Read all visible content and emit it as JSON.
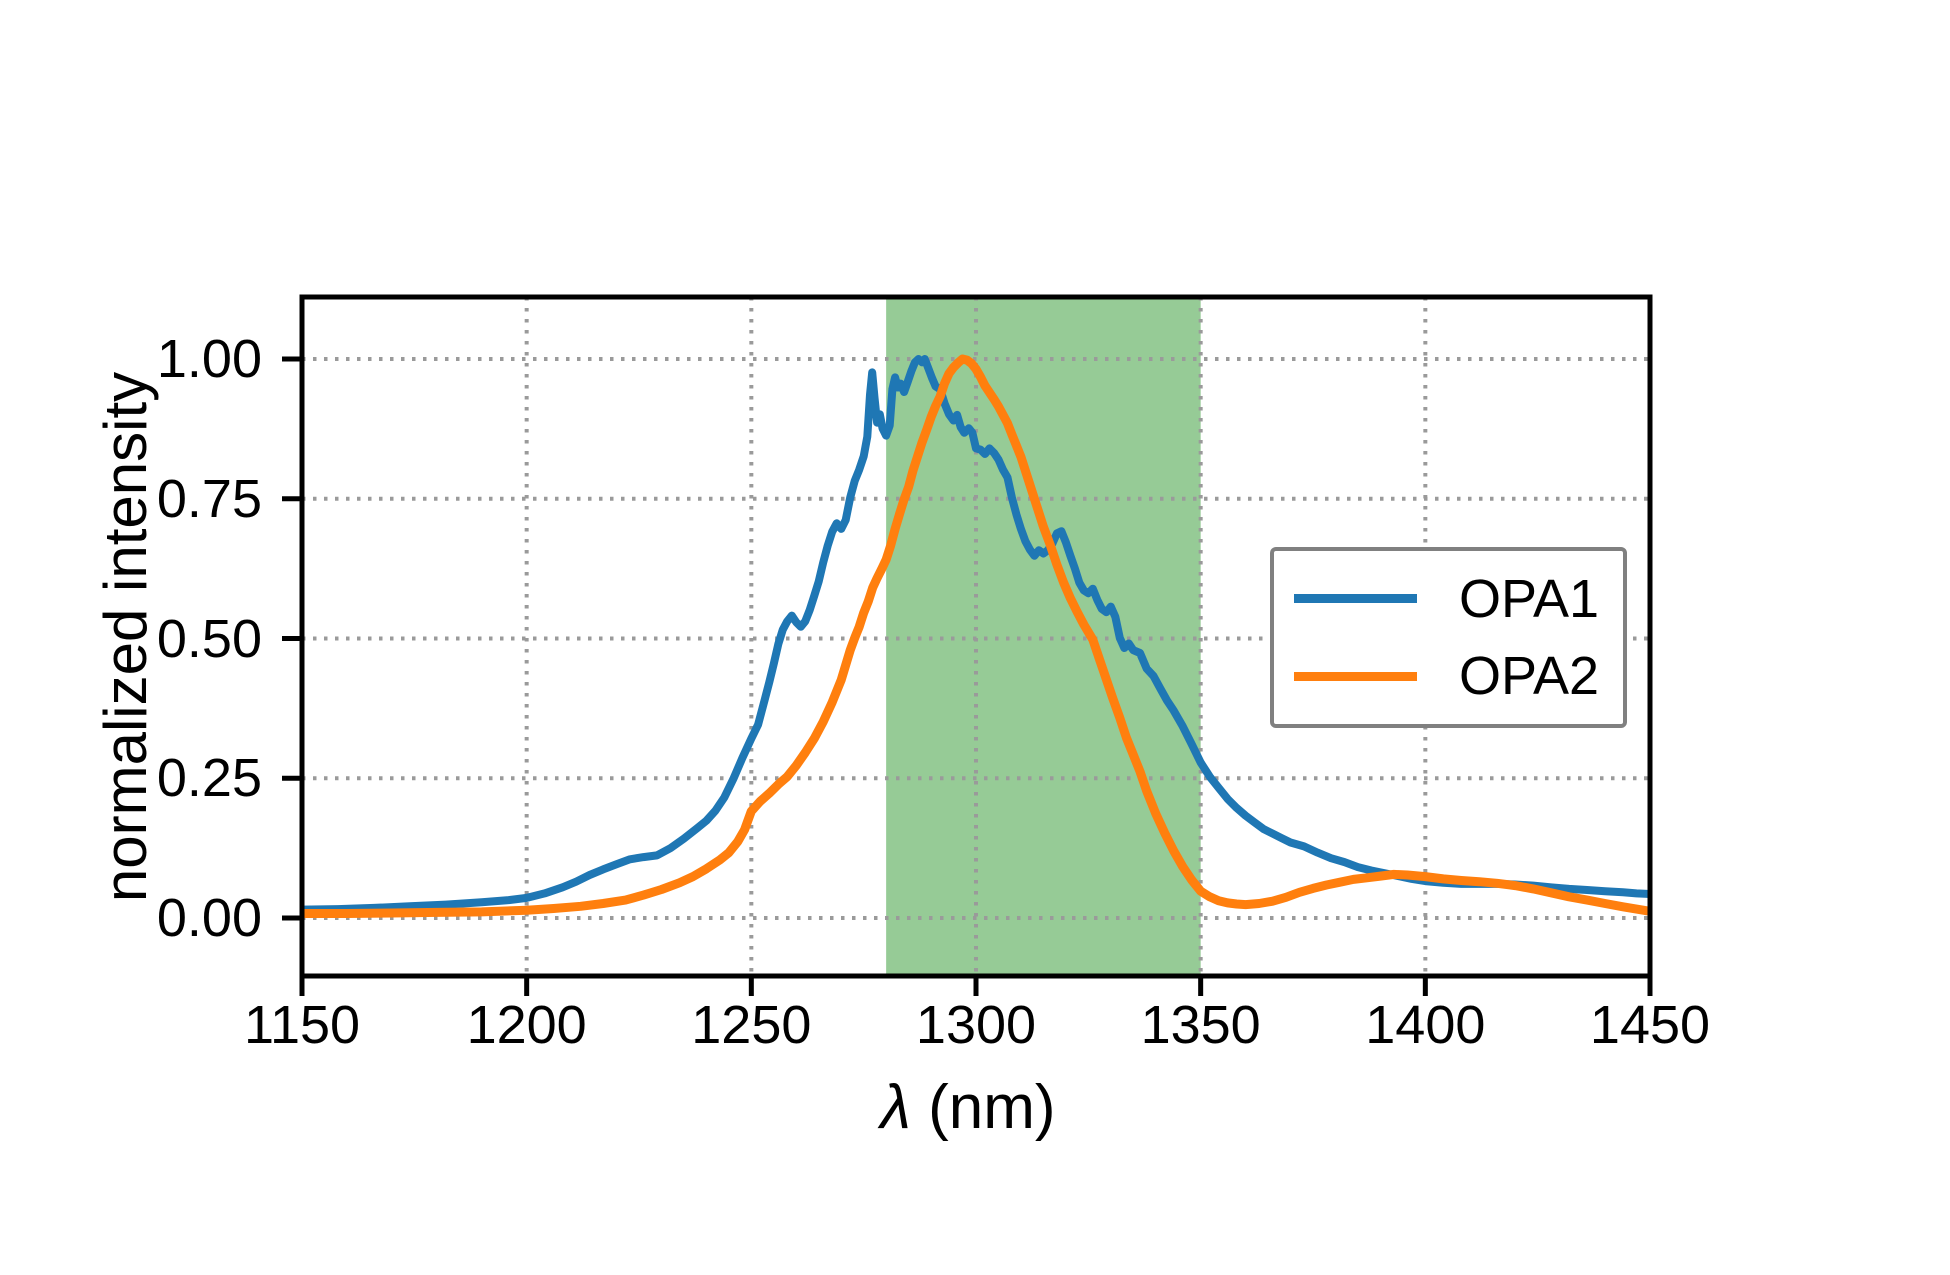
{
  "chart_data": {
    "type": "line",
    "title": "",
    "xlabel": "λ (nm)",
    "xlabel_lambda": "λ",
    "xlabel_units": " (nm)",
    "ylabel": "normalized intensity",
    "xlim": [
      1150,
      1450
    ],
    "ylim": [
      -0.1,
      1.11
    ],
    "xticks": [
      "1150",
      "1200",
      "1250",
      "1300",
      "1350",
      "1400",
      "1450"
    ],
    "xtick_values": [
      1150,
      1200,
      1250,
      1300,
      1350,
      1400,
      1450
    ],
    "yticks": [
      "0.00",
      "0.25",
      "0.50",
      "0.75",
      "1.00"
    ],
    "ytick_values": [
      0,
      0.25,
      0.5,
      0.75,
      1.0
    ],
    "grid": {
      "visible": true,
      "style": "dotted",
      "color": "#9a9a9a"
    },
    "shaded_region": {
      "x0": 1280,
      "x1": 1350,
      "color": "#96cb96"
    },
    "legend": {
      "position": "center right",
      "border_color": "#808080",
      "entries": [
        "OPA1",
        "OPA2"
      ]
    },
    "series": [
      {
        "name": "OPA1",
        "color": "#1f77b4",
        "points": [
          [
            1150,
            0.015
          ],
          [
            1158,
            0.016
          ],
          [
            1166,
            0.018
          ],
          [
            1174,
            0.021
          ],
          [
            1182,
            0.024
          ],
          [
            1190,
            0.028
          ],
          [
            1196,
            0.032
          ],
          [
            1200,
            0.036
          ],
          [
            1204,
            0.044
          ],
          [
            1208,
            0.055
          ],
          [
            1211,
            0.065
          ],
          [
            1214,
            0.077
          ],
          [
            1217,
            0.087
          ],
          [
            1220,
            0.096
          ],
          [
            1223,
            0.105
          ],
          [
            1226,
            0.109
          ],
          [
            1229,
            0.112
          ],
          [
            1232,
            0.125
          ],
          [
            1235,
            0.142
          ],
          [
            1238,
            0.161
          ],
          [
            1240,
            0.174
          ],
          [
            1242,
            0.192
          ],
          [
            1244,
            0.216
          ],
          [
            1246,
            0.249
          ],
          [
            1248,
            0.286
          ],
          [
            1250,
            0.321
          ],
          [
            1251.5,
            0.346
          ],
          [
            1253,
            0.391
          ],
          [
            1254,
            0.422
          ],
          [
            1255,
            0.455
          ],
          [
            1256,
            0.49
          ],
          [
            1257,
            0.516
          ],
          [
            1258,
            0.531
          ],
          [
            1259,
            0.541
          ],
          [
            1260,
            0.529
          ],
          [
            1261,
            0.521
          ],
          [
            1262,
            0.531
          ],
          [
            1263,
            0.551
          ],
          [
            1264,
            0.576
          ],
          [
            1265,
            0.602
          ],
          [
            1266,
            0.636
          ],
          [
            1267,
            0.666
          ],
          [
            1268,
            0.691
          ],
          [
            1269,
            0.706
          ],
          [
            1270,
            0.696
          ],
          [
            1271,
            0.712
          ],
          [
            1272,
            0.752
          ],
          [
            1273,
            0.782
          ],
          [
            1274,
            0.802
          ],
          [
            1275,
            0.826
          ],
          [
            1275.8,
            0.861
          ],
          [
            1276.4,
            0.936
          ],
          [
            1276.9,
            0.976
          ],
          [
            1277.4,
            0.931
          ],
          [
            1278,
            0.886
          ],
          [
            1278.6,
            0.901
          ],
          [
            1279.2,
            0.876
          ],
          [
            1280,
            0.863
          ],
          [
            1280.8,
            0.881
          ],
          [
            1281.4,
            0.946
          ],
          [
            1282,
            0.967
          ],
          [
            1282.6,
            0.949
          ],
          [
            1283.2,
            0.956
          ],
          [
            1284,
            0.941
          ],
          [
            1284.8,
            0.959
          ],
          [
            1285.6,
            0.978
          ],
          [
            1286.4,
            0.994
          ],
          [
            1287.2,
            1.0
          ],
          [
            1288,
            0.994
          ],
          [
            1288.6,
            1.0
          ],
          [
            1289.4,
            0.983
          ],
          [
            1290.2,
            0.966
          ],
          [
            1291,
            0.951
          ],
          [
            1292,
            0.946
          ],
          [
            1293,
            0.921
          ],
          [
            1294,
            0.901
          ],
          [
            1295,
            0.89
          ],
          [
            1295.8,
            0.9
          ],
          [
            1296.6,
            0.878
          ],
          [
            1297.4,
            0.868
          ],
          [
            1298.4,
            0.876
          ],
          [
            1299.2,
            0.868
          ],
          [
            1300,
            0.84
          ],
          [
            1301,
            0.838
          ],
          [
            1302,
            0.83
          ],
          [
            1303,
            0.84
          ],
          [
            1304,
            0.832
          ],
          [
            1305,
            0.82
          ],
          [
            1306,
            0.802
          ],
          [
            1307,
            0.788
          ],
          [
            1308,
            0.752
          ],
          [
            1309,
            0.722
          ],
          [
            1310,
            0.696
          ],
          [
            1311,
            0.674
          ],
          [
            1312,
            0.659
          ],
          [
            1313,
            0.648
          ],
          [
            1314,
            0.658
          ],
          [
            1315,
            0.652
          ],
          [
            1316,
            0.658
          ],
          [
            1317,
            0.67
          ],
          [
            1318,
            0.688
          ],
          [
            1319,
            0.692
          ],
          [
            1320,
            0.672
          ],
          [
            1321,
            0.648
          ],
          [
            1322,
            0.625
          ],
          [
            1323,
            0.6
          ],
          [
            1324,
            0.586
          ],
          [
            1325,
            0.581
          ],
          [
            1326,
            0.589
          ],
          [
            1327,
            0.569
          ],
          [
            1328,
            0.553
          ],
          [
            1329,
            0.547
          ],
          [
            1330,
            0.557
          ],
          [
            1331,
            0.539
          ],
          [
            1332,
            0.501
          ],
          [
            1333,
            0.483
          ],
          [
            1334,
            0.491
          ],
          [
            1335,
            0.479
          ],
          [
            1336.5,
            0.474
          ],
          [
            1338,
            0.446
          ],
          [
            1339.5,
            0.433
          ],
          [
            1341,
            0.411
          ],
          [
            1342.5,
            0.389
          ],
          [
            1344,
            0.371
          ],
          [
            1346,
            0.343
          ],
          [
            1348,
            0.311
          ],
          [
            1350,
            0.278
          ],
          [
            1352,
            0.253
          ],
          [
            1354,
            0.233
          ],
          [
            1356,
            0.213
          ],
          [
            1358,
            0.197
          ],
          [
            1360,
            0.183
          ],
          [
            1362,
            0.171
          ],
          [
            1364,
            0.159
          ],
          [
            1366,
            0.151
          ],
          [
            1368,
            0.143
          ],
          [
            1370,
            0.135
          ],
          [
            1373,
            0.128
          ],
          [
            1376,
            0.117
          ],
          [
            1379,
            0.107
          ],
          [
            1382,
            0.1
          ],
          [
            1385,
            0.091
          ],
          [
            1388,
            0.085
          ],
          [
            1391,
            0.08
          ],
          [
            1394,
            0.075
          ],
          [
            1397,
            0.07
          ],
          [
            1400,
            0.066
          ],
          [
            1404,
            0.063
          ],
          [
            1408,
            0.061
          ],
          [
            1412,
            0.061
          ],
          [
            1416,
            0.061
          ],
          [
            1420,
            0.06
          ],
          [
            1424,
            0.058
          ],
          [
            1428,
            0.055
          ],
          [
            1432,
            0.052
          ],
          [
            1436,
            0.05
          ],
          [
            1440,
            0.048
          ],
          [
            1444,
            0.046
          ],
          [
            1447,
            0.044
          ],
          [
            1450,
            0.043
          ]
        ]
      },
      {
        "name": "OPA2",
        "color": "#ff7f0e",
        "points": [
          [
            1150,
            0.008
          ],
          [
            1160,
            0.008
          ],
          [
            1170,
            0.009
          ],
          [
            1180,
            0.01
          ],
          [
            1190,
            0.011
          ],
          [
            1200,
            0.014
          ],
          [
            1206,
            0.017
          ],
          [
            1212,
            0.021
          ],
          [
            1217,
            0.026
          ],
          [
            1222,
            0.032
          ],
          [
            1226,
            0.041
          ],
          [
            1230,
            0.051
          ],
          [
            1234,
            0.063
          ],
          [
            1237,
            0.074
          ],
          [
            1240,
            0.088
          ],
          [
            1243,
            0.104
          ],
          [
            1245,
            0.117
          ],
          [
            1247,
            0.137
          ],
          [
            1248.5,
            0.158
          ],
          [
            1250,
            0.191
          ],
          [
            1252,
            0.209
          ],
          [
            1254,
            0.223
          ],
          [
            1256,
            0.239
          ],
          [
            1258,
            0.253
          ],
          [
            1260,
            0.273
          ],
          [
            1262,
            0.296
          ],
          [
            1264,
            0.321
          ],
          [
            1266,
            0.351
          ],
          [
            1268,
            0.386
          ],
          [
            1270,
            0.426
          ],
          [
            1272,
            0.479
          ],
          [
            1273,
            0.501
          ],
          [
            1274,
            0.521
          ],
          [
            1275,
            0.546
          ],
          [
            1276,
            0.566
          ],
          [
            1277,
            0.591
          ],
          [
            1278,
            0.608
          ],
          [
            1279,
            0.624
          ],
          [
            1280,
            0.641
          ],
          [
            1281,
            0.666
          ],
          [
            1282,
            0.696
          ],
          [
            1283,
            0.723
          ],
          [
            1284,
            0.749
          ],
          [
            1285,
            0.771
          ],
          [
            1286,
            0.801
          ],
          [
            1287,
            0.826
          ],
          [
            1288,
            0.851
          ],
          [
            1289,
            0.873
          ],
          [
            1290,
            0.896
          ],
          [
            1291,
            0.916
          ],
          [
            1292,
            0.933
          ],
          [
            1293,
            0.956
          ],
          [
            1294,
            0.974
          ],
          [
            1295,
            0.985
          ],
          [
            1296,
            0.993
          ],
          [
            1297,
            1.0
          ],
          [
            1298,
            0.998
          ],
          [
            1299,
            0.992
          ],
          [
            1300,
            0.982
          ],
          [
            1301,
            0.968
          ],
          [
            1302,
            0.952
          ],
          [
            1303,
            0.94
          ],
          [
            1304,
            0.928
          ],
          [
            1305,
            0.915
          ],
          [
            1306,
            0.9
          ],
          [
            1307,
            0.885
          ],
          [
            1308,
            0.865
          ],
          [
            1309,
            0.845
          ],
          [
            1310,
            0.825
          ],
          [
            1311,
            0.8
          ],
          [
            1312,
            0.775
          ],
          [
            1313,
            0.75
          ],
          [
            1314,
            0.725
          ],
          [
            1315,
            0.7
          ],
          [
            1316.5,
            0.668
          ],
          [
            1318,
            0.632
          ],
          [
            1319.5,
            0.6
          ],
          [
            1321,
            0.572
          ],
          [
            1322.5,
            0.548
          ],
          [
            1324,
            0.525
          ],
          [
            1326,
            0.498
          ],
          [
            1327.5,
            0.462
          ],
          [
            1329,
            0.427
          ],
          [
            1330.5,
            0.392
          ],
          [
            1332,
            0.358
          ],
          [
            1333.5,
            0.322
          ],
          [
            1335,
            0.292
          ],
          [
            1336.5,
            0.262
          ],
          [
            1338,
            0.227
          ],
          [
            1340,
            0.187
          ],
          [
            1342,
            0.152
          ],
          [
            1344,
            0.12
          ],
          [
            1346,
            0.092
          ],
          [
            1348,
            0.068
          ],
          [
            1350,
            0.048
          ],
          [
            1352,
            0.038
          ],
          [
            1354,
            0.031
          ],
          [
            1356,
            0.027
          ],
          [
            1358,
            0.025
          ],
          [
            1360,
            0.024
          ],
          [
            1363,
            0.026
          ],
          [
            1366,
            0.03
          ],
          [
            1369,
            0.037
          ],
          [
            1372,
            0.046
          ],
          [
            1375,
            0.053
          ],
          [
            1378,
            0.059
          ],
          [
            1381,
            0.064
          ],
          [
            1384,
            0.069
          ],
          [
            1387,
            0.072
          ],
          [
            1390,
            0.075
          ],
          [
            1393,
            0.078
          ],
          [
            1396,
            0.077
          ],
          [
            1400,
            0.074
          ],
          [
            1404,
            0.07
          ],
          [
            1408,
            0.067
          ],
          [
            1412,
            0.065
          ],
          [
            1416,
            0.062
          ],
          [
            1420,
            0.058
          ],
          [
            1424,
            0.052
          ],
          [
            1428,
            0.045
          ],
          [
            1432,
            0.038
          ],
          [
            1436,
            0.032
          ],
          [
            1440,
            0.026
          ],
          [
            1444,
            0.02
          ],
          [
            1447,
            0.016
          ],
          [
            1450,
            0.012
          ]
        ]
      }
    ]
  }
}
